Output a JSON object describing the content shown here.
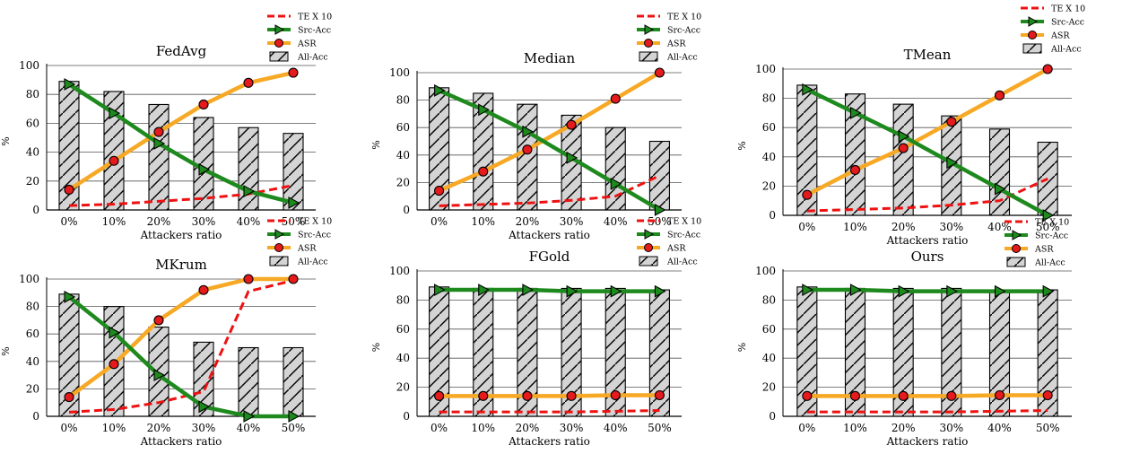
{
  "legend_labels": {
    "te": "TE X 10",
    "src": "Src-Acc",
    "asr": "ASR",
    "all": "All-Acc"
  },
  "colors": {
    "te": "#ee1111",
    "src": "#1e8a1e",
    "asr": "#f7a824",
    "asr_marker": "#e41a1c",
    "bar": "#d4d4d4"
  },
  "chart_data": [
    {
      "type": "bar",
      "title": "FedAvg",
      "xlabel": "Attackers ratio",
      "ylabel": "%",
      "categories": [
        "0%",
        "10%",
        "20%",
        "30%",
        "40%",
        "50%"
      ],
      "yticks": [
        "0",
        "20",
        "40",
        "60",
        "80",
        "100"
      ],
      "ylim": [
        0,
        100
      ],
      "series": [
        {
          "name": "All-Acc",
          "kind": "bar",
          "values": [
            89,
            82,
            73,
            64,
            57,
            53
          ]
        },
        {
          "name": "Src-Acc",
          "kind": "line",
          "values": [
            87,
            67,
            46,
            28,
            13,
            5
          ]
        },
        {
          "name": "ASR",
          "kind": "line",
          "values": [
            14,
            34,
            54,
            73,
            88,
            95
          ]
        },
        {
          "name": "TE X 10",
          "kind": "dashed",
          "values": [
            3,
            4,
            6,
            8,
            11,
            17
          ]
        }
      ]
    },
    {
      "type": "bar",
      "title": "Median",
      "xlabel": "Attackers ratio",
      "ylabel": "%",
      "categories": [
        "0%",
        "10%",
        "20%",
        "30%",
        "40%",
        "50%"
      ],
      "yticks": [
        "0",
        "20",
        "40",
        "60",
        "80",
        "100"
      ],
      "ylim": [
        0,
        100
      ],
      "series": [
        {
          "name": "All-Acc",
          "kind": "bar",
          "values": [
            89,
            85,
            77,
            69,
            60,
            50
          ]
        },
        {
          "name": "Src-Acc",
          "kind": "line",
          "values": [
            87,
            73,
            57,
            38,
            19,
            0
          ]
        },
        {
          "name": "ASR",
          "kind": "line",
          "values": [
            14,
            28,
            44,
            62,
            81,
            100
          ]
        },
        {
          "name": "TE X 10",
          "kind": "dashed",
          "values": [
            3,
            4,
            5,
            7,
            10,
            25
          ]
        }
      ]
    },
    {
      "type": "bar",
      "title": "TMean",
      "xlabel": "Attackers ratio",
      "ylabel": "%",
      "categories": [
        "0%",
        "10%",
        "20%",
        "30%",
        "40%",
        "50%"
      ],
      "yticks": [
        "0",
        "20",
        "40",
        "60",
        "80",
        "100"
      ],
      "ylim": [
        0,
        100
      ],
      "series": [
        {
          "name": "All-Acc",
          "kind": "bar",
          "values": [
            89,
            83,
            76,
            68,
            59,
            50
          ]
        },
        {
          "name": "Src-Acc",
          "kind": "line",
          "values": [
            86,
            70,
            54,
            36,
            18,
            0
          ]
        },
        {
          "name": "ASR",
          "kind": "line",
          "values": [
            14,
            31,
            46,
            64,
            82,
            100
          ]
        },
        {
          "name": "TE X 10",
          "kind": "dashed",
          "values": [
            3,
            4,
            5,
            7,
            10,
            25
          ]
        }
      ]
    },
    {
      "type": "bar",
      "title": "MKrum",
      "xlabel": "Attackers ratio",
      "ylabel": "%",
      "categories": [
        "0%",
        "10%",
        "20%",
        "30%",
        "40%",
        "50%"
      ],
      "yticks": [
        "0",
        "20",
        "40",
        "60",
        "80",
        "100"
      ],
      "ylim": [
        0,
        100
      ],
      "series": [
        {
          "name": "All-Acc",
          "kind": "bar",
          "values": [
            89,
            80,
            65,
            54,
            50,
            50
          ]
        },
        {
          "name": "Src-Acc",
          "kind": "line",
          "values": [
            87,
            61,
            30,
            7,
            0,
            0
          ]
        },
        {
          "name": "ASR",
          "kind": "line",
          "values": [
            14,
            38,
            70,
            92,
            100,
            100
          ]
        },
        {
          "name": "TE X 10",
          "kind": "dashed",
          "values": [
            3,
            5,
            10,
            18,
            91,
            99
          ]
        }
      ]
    },
    {
      "type": "bar",
      "title": "FGold",
      "xlabel": "Attackers ratio",
      "ylabel": "%",
      "categories": [
        "0%",
        "10%",
        "20%",
        "30%",
        "40%",
        "50%"
      ],
      "yticks": [
        "0",
        "20",
        "40",
        "60",
        "80",
        "100"
      ],
      "ylim": [
        0,
        100
      ],
      "series": [
        {
          "name": "All-Acc",
          "kind": "bar",
          "values": [
            89,
            88,
            88,
            88,
            88,
            87
          ]
        },
        {
          "name": "Src-Acc",
          "kind": "line",
          "values": [
            87,
            87,
            87,
            86,
            86,
            86
          ]
        },
        {
          "name": "ASR",
          "kind": "line",
          "values": [
            14,
            14,
            14,
            14,
            14.5,
            14.5
          ]
        },
        {
          "name": "TE X 10",
          "kind": "dashed",
          "values": [
            3,
            3,
            3,
            3,
            3.5,
            4
          ]
        }
      ]
    },
    {
      "type": "bar",
      "title": "Ours",
      "xlabel": "Attackers ratio",
      "ylabel": "%",
      "categories": [
        "0%",
        "10%",
        "20%",
        "30%",
        "40%",
        "50%"
      ],
      "yticks": [
        "0",
        "20",
        "40",
        "60",
        "80",
        "100"
      ],
      "ylim": [
        0,
        100
      ],
      "series": [
        {
          "name": "All-Acc",
          "kind": "bar",
          "values": [
            89,
            88,
            88,
            88,
            87,
            87
          ]
        },
        {
          "name": "Src-Acc",
          "kind": "line",
          "values": [
            87,
            87,
            86,
            86,
            86,
            86
          ]
        },
        {
          "name": "ASR",
          "kind": "line",
          "values": [
            14,
            14,
            14,
            14,
            14.5,
            14.5
          ]
        },
        {
          "name": "TE X 10",
          "kind": "dashed",
          "values": [
            3,
            3,
            3,
            3,
            3.5,
            4
          ]
        }
      ]
    }
  ]
}
